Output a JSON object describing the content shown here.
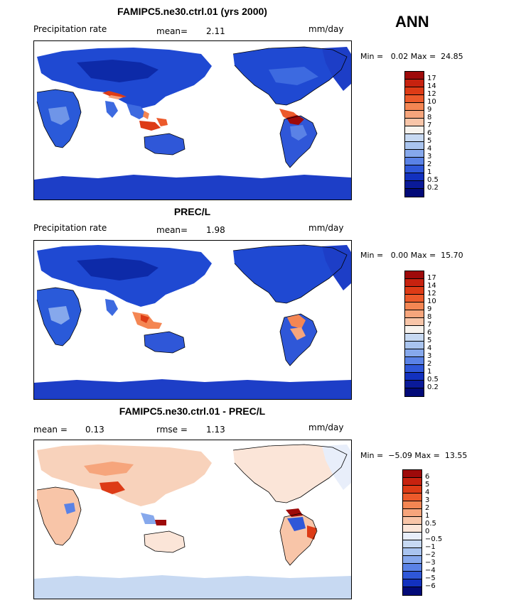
{
  "season": "ANN",
  "panels": [
    {
      "id": "model",
      "title": "FAMIPC5.ne30.ctrl.01 (yrs 2000)",
      "left_label": "Precipitation rate",
      "mean_label": "mean=",
      "mean_value": "2.11",
      "units": "mm/day",
      "minmax": "Min =   0.02 Max =  24.85",
      "levels": [
        "17",
        "14",
        "12",
        "10",
        "9",
        "8",
        "7",
        "6",
        "5",
        "4",
        "3",
        "2",
        "1",
        "0.5",
        "0.2"
      ],
      "colors": [
        "#9e0a0a",
        "#c7220f",
        "#dd3b16",
        "#ec5a2b",
        "#f48653",
        "#f6a57c",
        "#f8c5a8",
        "#f7f3ee",
        "#c7d9f2",
        "#a9c4ef",
        "#86a8ec",
        "#5a82e6",
        "#2f57d8",
        "#1231bf",
        "#0a1a99",
        "#020a78"
      ]
    },
    {
      "id": "obs",
      "title": "PREC/L",
      "left_label": "Precipitation rate",
      "mean_label": "mean=",
      "mean_value": "1.98",
      "units": "mm/day",
      "minmax": "Min =   0.00 Max =  15.70",
      "levels": [
        "17",
        "14",
        "12",
        "10",
        "9",
        "8",
        "7",
        "6",
        "5",
        "4",
        "3",
        "2",
        "1",
        "0.5",
        "0.2"
      ],
      "colors": [
        "#9e0a0a",
        "#c7220f",
        "#dd3b16",
        "#ec5a2b",
        "#f48653",
        "#f6a57c",
        "#f8c5a8",
        "#f7f3ee",
        "#c7d9f2",
        "#a9c4ef",
        "#86a8ec",
        "#5a82e6",
        "#2f57d8",
        "#1231bf",
        "#0a1a99",
        "#020a78"
      ]
    },
    {
      "id": "diff",
      "title": "FAMIPC5.ne30.ctrl.01 - PREC/L",
      "mean_label": "mean =",
      "mean_value": "0.13",
      "rmse_label": "rmse =",
      "rmse_value": "1.13",
      "units": "mm/day",
      "minmax": "Min =  −5.09 Max =  13.55",
      "levels": [
        "6",
        "5",
        "4",
        "3",
        "2",
        "1",
        "0.5",
        "0",
        "−0.5",
        "−1",
        "−2",
        "−3",
        "−4",
        "−5",
        "−6"
      ],
      "colors": [
        "#9e0a0a",
        "#c7220f",
        "#dd3b16",
        "#ec5a2b",
        "#f48653",
        "#f6a57c",
        "#f8c5a8",
        "#fbe5d8",
        "#e8eefa",
        "#c7d9f2",
        "#a9c4ef",
        "#86a8ec",
        "#5a82e6",
        "#2f57d8",
        "#1231bf",
        "#020a78"
      ]
    }
  ]
}
